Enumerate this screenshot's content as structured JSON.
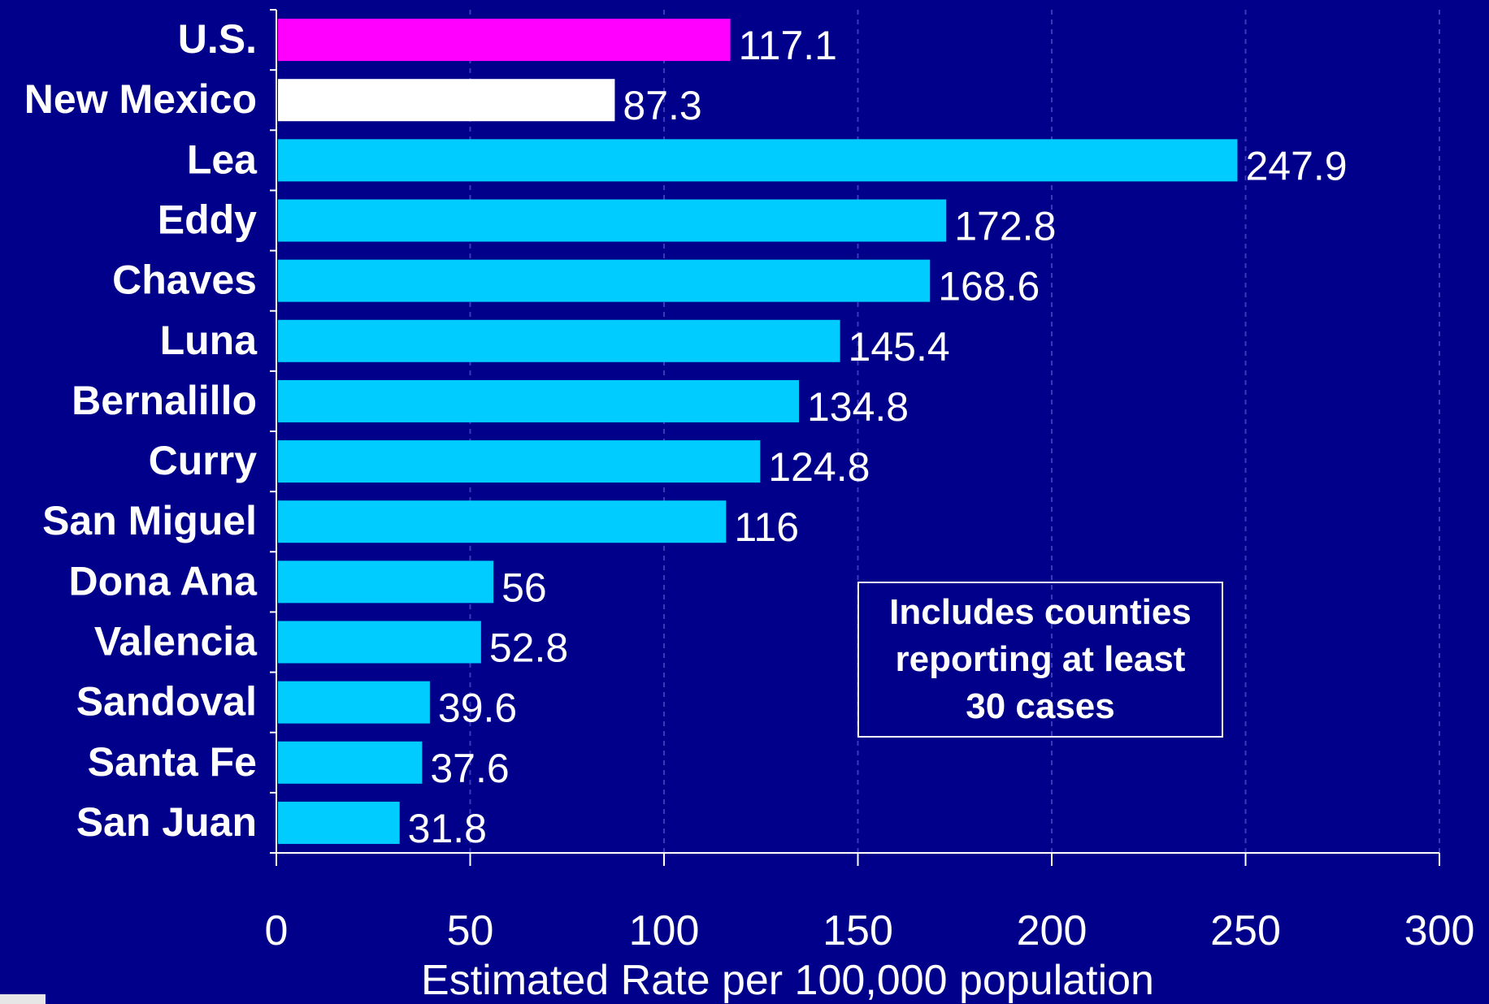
{
  "chart_data": {
    "type": "bar",
    "orientation": "horizontal",
    "categories": [
      "U.S.",
      "New Mexico",
      "Lea",
      "Eddy",
      "Chaves",
      "Luna",
      "Bernalillo",
      "Curry",
      "San Miguel",
      "Dona Ana",
      "Valencia",
      "Sandoval",
      "Santa Fe",
      "San Juan"
    ],
    "values": [
      117.1,
      87.3,
      247.9,
      172.8,
      168.6,
      145.4,
      134.8,
      124.8,
      116,
      56,
      52.8,
      39.6,
      37.6,
      31.8
    ],
    "value_labels": [
      "117.1",
      "87.3",
      "247.9",
      "172.8",
      "168.6",
      "145.4",
      "134.8",
      "124.8",
      "116",
      "56",
      "52.8",
      "39.6",
      "37.6",
      "31.8"
    ],
    "bar_colors": [
      "#FF00FF",
      "#FFFFFF",
      "#00CCFF",
      "#00CCFF",
      "#00CCFF",
      "#00CCFF",
      "#00CCFF",
      "#00CCFF",
      "#00CCFF",
      "#00CCFF",
      "#00CCFF",
      "#00CCFF",
      "#00CCFF",
      "#00CCFF"
    ],
    "xlabel": "Estimated Rate per 100,000 population",
    "xlim": [
      0,
      300
    ],
    "xticks": [
      0,
      50,
      100,
      150,
      200,
      250,
      300
    ],
    "grid": "vertical dashed",
    "annotation": "Includes counties reporting at least 30 cases"
  },
  "colors": {
    "background": "#00008B",
    "text": "#FFFFFF",
    "us_bar": "#FF00FF",
    "state_bar": "#FFFFFF",
    "county_bar": "#00CCFF"
  },
  "note": {
    "line1": "Includes counties",
    "line2": "reporting at least",
    "line3": "30 cases"
  }
}
